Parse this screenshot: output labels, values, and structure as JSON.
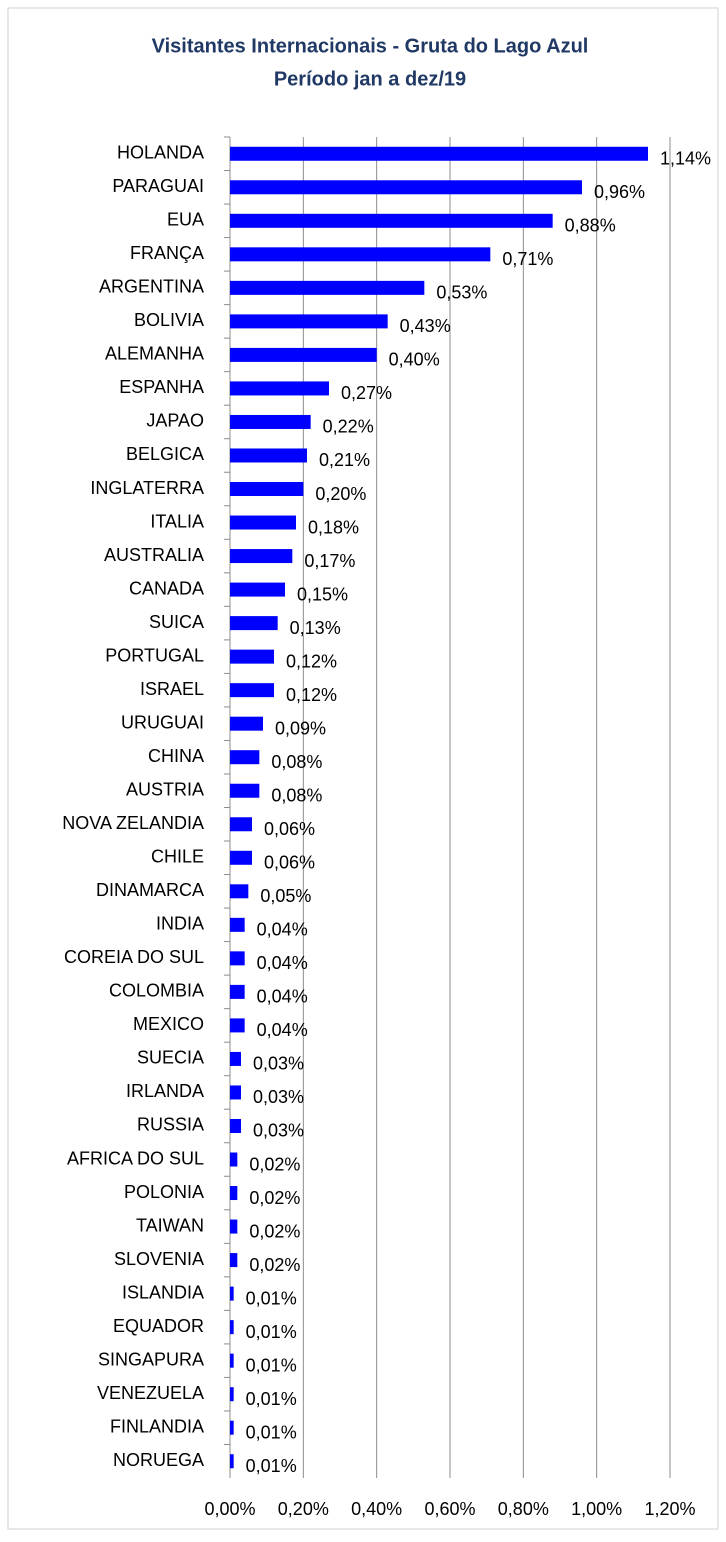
{
  "chart_data": {
    "type": "bar",
    "orientation": "horizontal",
    "title": [
      "Visitantes Internacionais -  Gruta do Lago Azul",
      "Período jan a dez/19"
    ],
    "categories": [
      "HOLANDA",
      "PARAGUAI",
      "EUA",
      "FRANÇA",
      "ARGENTINA",
      "BOLIVIA",
      "ALEMANHA",
      "ESPANHA",
      "JAPAO",
      "BELGICA",
      "INGLATERRA",
      "ITALIA",
      "AUSTRALIA",
      "CANADA",
      "SUICA",
      "PORTUGAL",
      "ISRAEL",
      "URUGUAI",
      "CHINA",
      "AUSTRIA",
      "NOVA ZELANDIA",
      "CHILE",
      "DINAMARCA",
      "INDIA",
      "COREIA DO SUL",
      "COLOMBIA",
      "MEXICO",
      "SUECIA",
      "IRLANDA",
      "RUSSIA",
      "AFRICA DO SUL",
      "POLONIA",
      "TAIWAN",
      "SLOVENIA",
      "ISLANDIA",
      "EQUADOR",
      "SINGAPURA",
      "VENEZUELA",
      "FINLANDIA",
      "NORUEGA"
    ],
    "values": [
      1.14,
      0.96,
      0.88,
      0.71,
      0.53,
      0.43,
      0.4,
      0.27,
      0.22,
      0.21,
      0.2,
      0.18,
      0.17,
      0.15,
      0.13,
      0.12,
      0.12,
      0.09,
      0.08,
      0.08,
      0.06,
      0.06,
      0.05,
      0.04,
      0.04,
      0.04,
      0.04,
      0.03,
      0.03,
      0.03,
      0.02,
      0.02,
      0.02,
      0.02,
      0.01,
      0.01,
      0.01,
      0.01,
      0.01,
      0.01
    ],
    "value_labels": [
      "1,14%",
      "0,96%",
      "0,88%",
      "0,71%",
      "0,53%",
      "0,43%",
      "0,40%",
      "0,27%",
      "0,22%",
      "0,21%",
      "0,20%",
      "0,18%",
      "0,17%",
      "0,15%",
      "0,13%",
      "0,12%",
      "0,12%",
      "0,09%",
      "0,08%",
      "0,08%",
      "0,06%",
      "0,06%",
      "0,05%",
      "0,04%",
      "0,04%",
      "0,04%",
      "0,04%",
      "0,03%",
      "0,03%",
      "0,03%",
      "0,02%",
      "0,02%",
      "0,02%",
      "0,02%",
      "0,01%",
      "0,01%",
      "0,01%",
      "0,01%",
      "0,01%",
      "0,01%"
    ],
    "color": "#0000ff",
    "xlim": [
      0,
      1.2
    ],
    "xticks": [
      {
        "value": 0,
        "label": "0,00%"
      },
      {
        "value": 0.2,
        "label": "0,20%"
      },
      {
        "value": 0.4,
        "label": "0,40%"
      },
      {
        "value": 0.6,
        "label": "0,60%"
      },
      {
        "value": 0.8,
        "label": "0,80%"
      },
      {
        "value": 1.0,
        "label": "1,00%"
      },
      {
        "value": 1.2,
        "label": "1,20%"
      }
    ],
    "grid": true
  }
}
